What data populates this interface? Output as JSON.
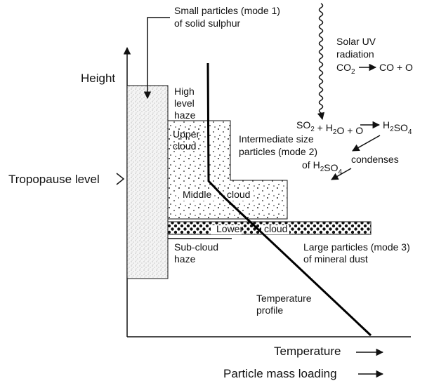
{
  "small_particles": [
    "Small particles (mode 1)",
    "of solid sulphur"
  ],
  "solar_uv": [
    "Solar UV",
    "radiation"
  ],
  "co2_equation": {
    "left": [
      {
        "text": "CO",
        "sub": "2"
      }
    ],
    "right": [
      {
        "text": "CO + O"
      }
    ]
  },
  "height": "Height",
  "high_haze": [
    "High",
    "level",
    "haze"
  ],
  "upper_cloud": [
    "Upper",
    "cloud"
  ],
  "so2_equation": {
    "left": [
      {
        "text": "SO",
        "sub": "2"
      },
      {
        "text": " + H",
        "sub": "2"
      },
      {
        "text": "O + O"
      }
    ],
    "right": [
      {
        "text": "H",
        "sub": "2"
      },
      {
        "text": "SO",
        "sub": "4"
      }
    ]
  },
  "condenses": "condenses",
  "intermediate": {
    "lines": [
      "Intermediate size",
      "particles (mode 2)"
    ],
    "formula": [
      {
        "text": "of H",
        "sub": "2"
      },
      {
        "text": "SO",
        "sub": "4"
      }
    ]
  },
  "tropopause": "Tropopause level",
  "middle_cloud": [
    "Middle",
    "cloud"
  ],
  "lower_cloud": [
    "Lower",
    "cloud"
  ],
  "sub_cloud": [
    "Sub-cloud",
    "haze"
  ],
  "large_particles": [
    "Large particles (mode 3)",
    "of mineral dust"
  ],
  "temperature_profile": [
    "Temperature",
    "profile"
  ],
  "x_axis": [
    "Temperature",
    "Particle mass loading"
  ]
}
